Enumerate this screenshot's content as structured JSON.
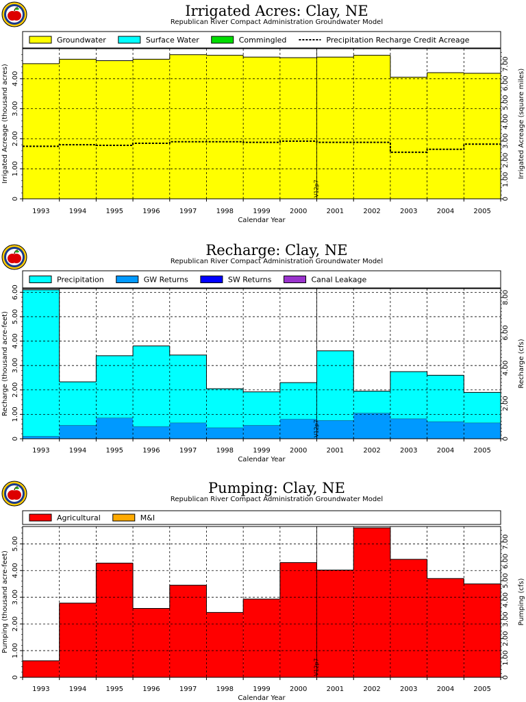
{
  "logo_icon": "apple-logo-icon",
  "chart_data": [
    {
      "type": "bar",
      "stacked": true,
      "title": "Irrigated Acres: Clay, NE",
      "subtitle": "Republican River Compact Administration Groundwater Model",
      "xlabel": "Calendar Year",
      "ylabel": "Irrigated Acreage (thousand acres)",
      "ylabel_right": "Irrigated Acreage (square miles)",
      "categories": [
        "1993",
        "1994",
        "1995",
        "1996",
        "1997",
        "1998",
        "1999",
        "2000",
        "2001",
        "2002",
        "2003",
        "2004",
        "2005"
      ],
      "ylim": [
        0,
        5.0
      ],
      "yticks": [
        "0",
        "1.00",
        "2.00",
        "3.00",
        "4.00"
      ],
      "ylim_right": [
        0,
        7.8
      ],
      "yticks_right": [
        "0",
        "1.00",
        "2.00",
        "3.00",
        "4.00",
        "5.00",
        "6.00",
        "7.00"
      ],
      "annotation": "V12p7",
      "grid": true,
      "legend_position": "top",
      "series": [
        {
          "name": "Groundwater",
          "color": "#ffff00",
          "values": [
            4.5,
            4.65,
            4.6,
            4.65,
            4.8,
            4.78,
            4.72,
            4.7,
            4.72,
            4.78,
            4.05,
            4.2,
            4.18
          ]
        },
        {
          "name": "Surface Water",
          "color": "#00ffff",
          "values": [
            0,
            0,
            0,
            0,
            0,
            0,
            0,
            0,
            0,
            0,
            0,
            0,
            0
          ]
        },
        {
          "name": "Commingled",
          "color": "#00dd00",
          "values": [
            0,
            0,
            0,
            0,
            0,
            0,
            0,
            0,
            0,
            0,
            0,
            0,
            0
          ]
        }
      ],
      "line_series": {
        "name": "Precipitation Recharge Credit Acreage",
        "values": [
          1.75,
          1.8,
          1.78,
          1.85,
          1.9,
          1.9,
          1.88,
          1.92,
          1.88,
          1.88,
          1.55,
          1.65,
          1.82
        ]
      }
    },
    {
      "type": "bar",
      "stacked": true,
      "title": "Recharge: Clay, NE",
      "subtitle": "Republican River Compact Administration Groundwater Model",
      "xlabel": "Calendar Year",
      "ylabel": "Recharge (thousand acre-feet)",
      "ylabel_right": "Recharge (cfs)",
      "categories": [
        "1993",
        "1994",
        "1995",
        "1996",
        "1997",
        "1998",
        "1999",
        "2000",
        "2001",
        "2002",
        "2003",
        "2004",
        "2005"
      ],
      "ylim": [
        0,
        6.15
      ],
      "yticks": [
        "0",
        "1.00",
        "2.00",
        "3.00",
        "4.00",
        "5.00",
        "6.00"
      ],
      "ylim_right": [
        0,
        8.5
      ],
      "yticks_right": [
        "0",
        "2.00",
        "4.00",
        "6.00",
        "8.00"
      ],
      "annotation": "V12p7",
      "grid": true,
      "legend_position": "top",
      "series": [
        {
          "name": "GW Returns",
          "color": "#0099ff",
          "values": [
            0.1,
            0.55,
            0.85,
            0.5,
            0.65,
            0.45,
            0.55,
            0.8,
            0.75,
            1.05,
            0.82,
            0.7,
            0.65
          ]
        },
        {
          "name": "Precipitation",
          "color": "#00ffff",
          "values": [
            6.0,
            1.78,
            2.55,
            3.3,
            2.78,
            1.6,
            1.37,
            1.5,
            2.85,
            0.9,
            1.93,
            1.9,
            1.25
          ]
        },
        {
          "name": "SW Returns",
          "color": "#0000ff",
          "values": [
            0,
            0,
            0,
            0,
            0,
            0,
            0,
            0,
            0,
            0,
            0,
            0,
            0
          ]
        },
        {
          "name": "Canal Leakage",
          "color": "#9933cc",
          "values": [
            0,
            0,
            0,
            0,
            0,
            0,
            0,
            0,
            0,
            0,
            0,
            0,
            0
          ]
        }
      ],
      "legend_order": [
        "Precipitation",
        "GW Returns",
        "SW Returns",
        "Canal Leakage"
      ]
    },
    {
      "type": "bar",
      "stacked": true,
      "title": "Pumping: Clay, NE",
      "subtitle": "Republican River Compact Administration Groundwater Model",
      "xlabel": "Calendar Year",
      "ylabel": "Pumping (thousand acre-feet)",
      "ylabel_right": "Pumping (cfs)",
      "categories": [
        "1993",
        "1994",
        "1995",
        "1996",
        "1997",
        "1998",
        "1999",
        "2000",
        "2001",
        "2002",
        "2003",
        "2004",
        "2005"
      ],
      "ylim": [
        0,
        5.65
      ],
      "yticks": [
        "0",
        "1.00",
        "2.00",
        "3.00",
        "4.00",
        "5.00"
      ],
      "ylim_right": [
        0,
        7.8
      ],
      "yticks_right": [
        "0",
        "1.00",
        "2.00",
        "3.00",
        "4.00",
        "5.00",
        "6.00",
        "7.00"
      ],
      "annotation": "V12p7",
      "grid": true,
      "legend_position": "top",
      "series": [
        {
          "name": "Agricultural",
          "color": "#ff0000",
          "values": [
            0.62,
            2.78,
            4.28,
            2.58,
            3.45,
            2.43,
            2.93,
            4.3,
            4.02,
            5.6,
            4.42,
            3.7,
            3.5
          ]
        },
        {
          "name": "M&I",
          "color": "#ffaa00",
          "values": [
            0,
            0,
            0,
            0,
            0,
            0,
            0,
            0,
            0,
            0,
            0,
            0,
            0
          ]
        }
      ]
    }
  ]
}
